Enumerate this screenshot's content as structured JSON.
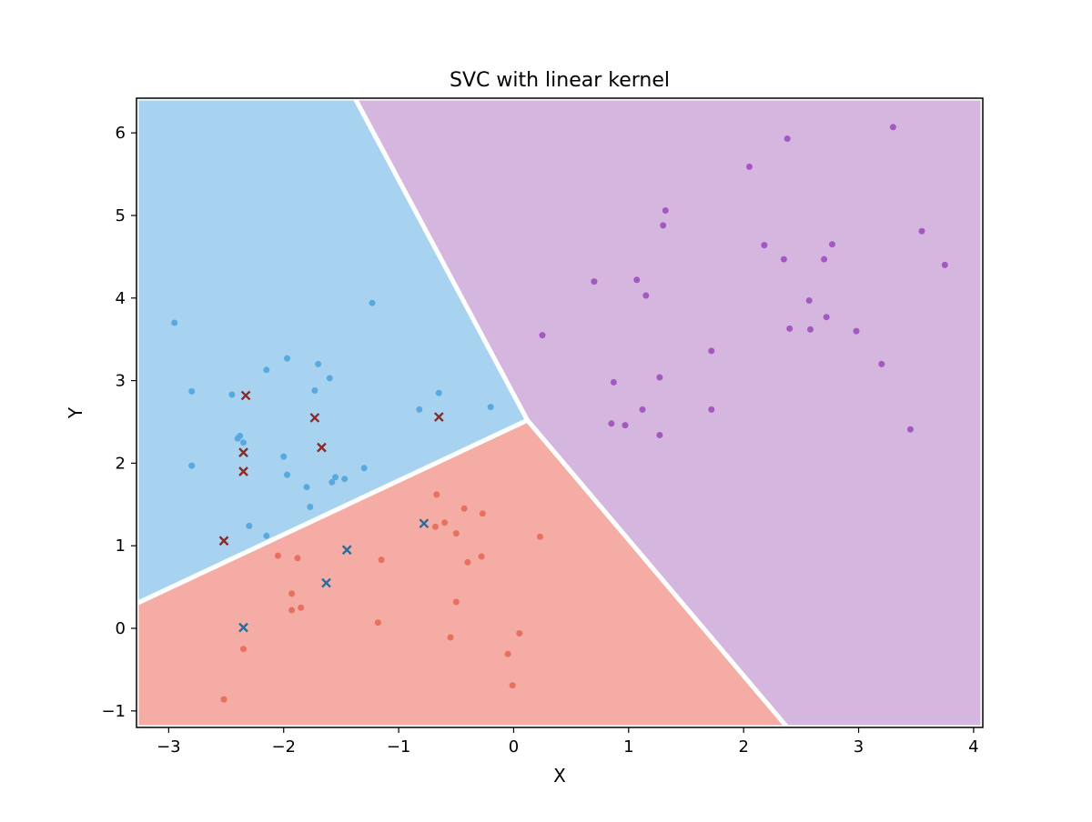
{
  "chart_data": {
    "type": "scatter",
    "title": "SVC with linear kernel",
    "xlabel": "X",
    "ylabel": "Y",
    "xlim": [
      -3.28,
      4.08
    ],
    "ylim": [
      -1.2,
      6.42
    ],
    "x_ticks": [
      -3,
      -2,
      -1,
      0,
      1,
      2,
      3,
      4
    ],
    "y_ticks": [
      -1,
      0,
      1,
      2,
      3,
      4,
      5,
      6
    ],
    "x_tick_labels": [
      "−3",
      "−2",
      "−1",
      "0",
      "1",
      "2",
      "3",
      "4"
    ],
    "y_tick_labels": [
      "−1",
      "0",
      "1",
      "2",
      "3",
      "4",
      "5",
      "6"
    ],
    "grid": false,
    "decision_regions": [
      {
        "class": "blue",
        "color": "#a8d3f0",
        "polygon": [
          [
            -3.28,
            0.3
          ],
          [
            -3.28,
            6.42
          ],
          [
            -1.38,
            6.42
          ],
          [
            0.12,
            2.52
          ]
        ]
      },
      {
        "class": "purple",
        "color": "#d5b6df",
        "polygon": [
          [
            -1.38,
            6.42
          ],
          [
            4.08,
            6.42
          ],
          [
            4.08,
            -1.2
          ],
          [
            2.38,
            -1.2
          ],
          [
            0.12,
            2.52
          ]
        ]
      },
      {
        "class": "red",
        "color": "#f4aca4",
        "polygon": [
          [
            -3.28,
            0.3
          ],
          [
            0.12,
            2.52
          ],
          [
            2.38,
            -1.2
          ],
          [
            -3.28,
            -1.2
          ]
        ]
      }
    ],
    "boundary_color": "#ffffff",
    "series": [
      {
        "marker": "dot",
        "color": "#5aa9de",
        "points": [
          [
            -2.95,
            3.7
          ],
          [
            -2.8,
            2.87
          ],
          [
            -2.8,
            1.97
          ],
          [
            -2.45,
            2.83
          ],
          [
            -2.4,
            2.3
          ],
          [
            -2.38,
            2.33
          ],
          [
            -2.35,
            2.25
          ],
          [
            -2.3,
            1.24
          ],
          [
            -2.15,
            3.13
          ],
          [
            -2.15,
            1.12
          ],
          [
            -2.0,
            2.08
          ],
          [
            -1.97,
            3.27
          ],
          [
            -1.97,
            1.86
          ],
          [
            -1.8,
            1.71
          ],
          [
            -1.77,
            1.47
          ],
          [
            -1.73,
            2.88
          ],
          [
            -1.7,
            3.2
          ],
          [
            -1.6,
            3.03
          ],
          [
            -1.58,
            1.77
          ],
          [
            -1.55,
            1.83
          ],
          [
            -1.47,
            1.81
          ],
          [
            -1.3,
            1.94
          ],
          [
            -1.23,
            3.94
          ],
          [
            -0.82,
            2.65
          ],
          [
            -0.65,
            2.85
          ],
          [
            -0.2,
            2.68
          ]
        ]
      },
      {
        "marker": "dot",
        "color": "#e8705e",
        "points": [
          [
            -2.52,
            -0.86
          ],
          [
            -2.35,
            -0.25
          ],
          [
            -2.05,
            0.88
          ],
          [
            -1.93,
            0.42
          ],
          [
            -1.93,
            0.22
          ],
          [
            -1.88,
            0.85
          ],
          [
            -1.85,
            0.25
          ],
          [
            -1.18,
            0.07
          ],
          [
            -1.15,
            0.83
          ],
          [
            -0.67,
            1.62
          ],
          [
            -0.68,
            1.23
          ],
          [
            -0.6,
            1.28
          ],
          [
            -0.55,
            -0.11
          ],
          [
            -0.5,
            0.32
          ],
          [
            -0.5,
            1.15
          ],
          [
            -0.43,
            1.45
          ],
          [
            -0.4,
            0.8
          ],
          [
            -0.28,
            0.87
          ],
          [
            -0.27,
            1.39
          ],
          [
            -0.05,
            -0.31
          ],
          [
            -0.01,
            -0.69
          ],
          [
            0.05,
            -0.06
          ],
          [
            0.23,
            1.11
          ]
        ]
      },
      {
        "marker": "dot",
        "color": "#a259c0",
        "points": [
          [
            0.25,
            3.55
          ],
          [
            0.7,
            4.2
          ],
          [
            0.85,
            2.48
          ],
          [
            0.87,
            2.98
          ],
          [
            0.97,
            2.46
          ],
          [
            1.07,
            4.22
          ],
          [
            1.12,
            2.65
          ],
          [
            1.15,
            4.03
          ],
          [
            1.27,
            3.04
          ],
          [
            1.27,
            2.34
          ],
          [
            1.3,
            4.88
          ],
          [
            1.32,
            5.06
          ],
          [
            1.72,
            3.36
          ],
          [
            1.72,
            2.65
          ],
          [
            2.05,
            5.59
          ],
          [
            2.18,
            4.64
          ],
          [
            2.35,
            4.47
          ],
          [
            2.38,
            5.93
          ],
          [
            2.4,
            3.63
          ],
          [
            2.57,
            3.97
          ],
          [
            2.58,
            3.62
          ],
          [
            2.7,
            4.47
          ],
          [
            2.72,
            3.77
          ],
          [
            2.77,
            4.65
          ],
          [
            2.98,
            3.6
          ],
          [
            3.2,
            3.2
          ],
          [
            3.3,
            6.07
          ],
          [
            3.45,
            2.41
          ],
          [
            3.55,
            4.81
          ],
          [
            3.75,
            4.4
          ]
        ]
      },
      {
        "marker": "x",
        "color": "#8b2a26",
        "points": [
          [
            -2.52,
            1.06
          ],
          [
            -2.35,
            2.13
          ],
          [
            -2.35,
            1.9
          ],
          [
            -2.33,
            2.82
          ],
          [
            -1.73,
            2.55
          ],
          [
            -1.67,
            2.19
          ],
          [
            -0.65,
            2.56
          ]
        ]
      },
      {
        "marker": "x",
        "color": "#2a6c9e",
        "points": [
          [
            -2.35,
            0.01
          ],
          [
            -1.63,
            0.55
          ],
          [
            -1.45,
            0.95
          ],
          [
            -0.78,
            1.27
          ]
        ]
      }
    ]
  }
}
